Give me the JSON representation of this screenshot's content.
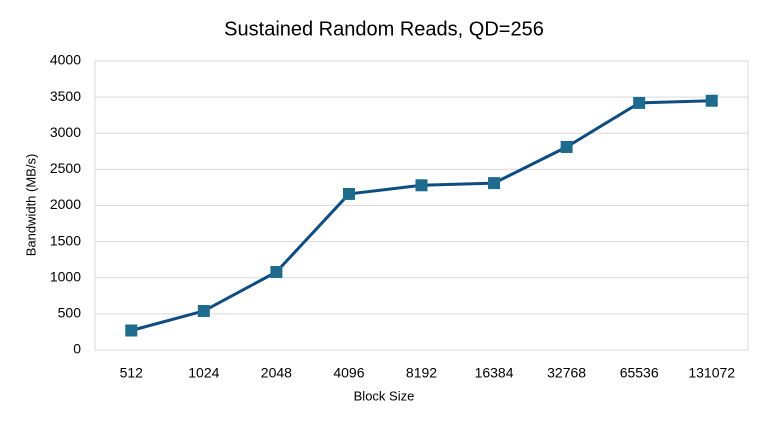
{
  "chart_data": {
    "type": "line",
    "title": "Sustained Random Reads, QD=256",
    "x_label": "Block Size",
    "y_label": "Bandwidth (MB/s)",
    "categories": [
      "512",
      "1024",
      "2048",
      "4096",
      "8192",
      "16384",
      "32768",
      "65536",
      "131072"
    ],
    "values": [
      270,
      540,
      1080,
      2160,
      2280,
      2310,
      2810,
      3420,
      3450
    ],
    "color": "#0f4c81",
    "marker_color": "#1f6b8e",
    "ylim": [
      0,
      4000
    ],
    "yticks": [
      0,
      500,
      1000,
      1500,
      2000,
      2500,
      3000,
      3500,
      4000
    ],
    "grid": true
  }
}
